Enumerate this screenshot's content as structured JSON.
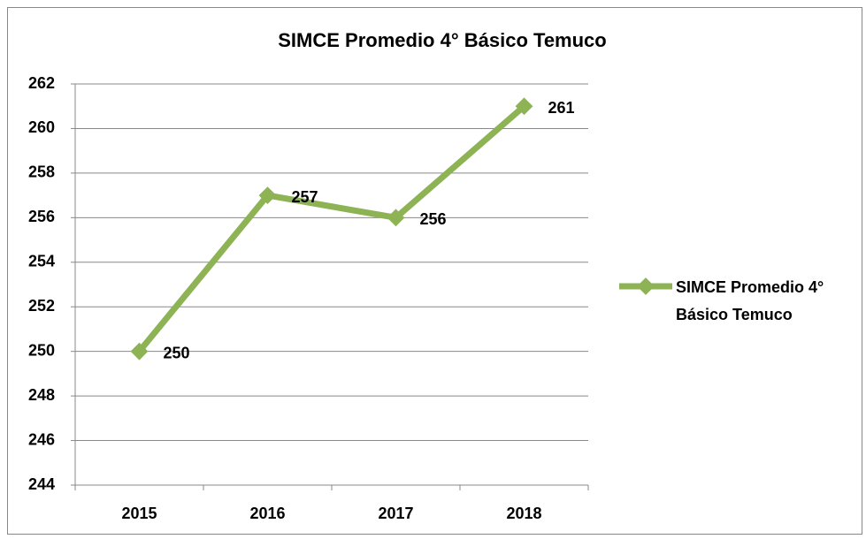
{
  "chart_data": {
    "type": "line",
    "title": "SIMCE Promedio 4° Básico Temuco",
    "categories": [
      "2015",
      "2016",
      "2017",
      "2018"
    ],
    "series": [
      {
        "name": "SIMCE Promedio 4° Básico Temuco",
        "color": "#8db354",
        "values": [
          250,
          257,
          256,
          261
        ]
      }
    ],
    "ylim": [
      244,
      262
    ],
    "yticks": [
      244,
      246,
      248,
      250,
      252,
      254,
      256,
      258,
      260,
      262
    ],
    "grid": true,
    "legend": "right"
  }
}
